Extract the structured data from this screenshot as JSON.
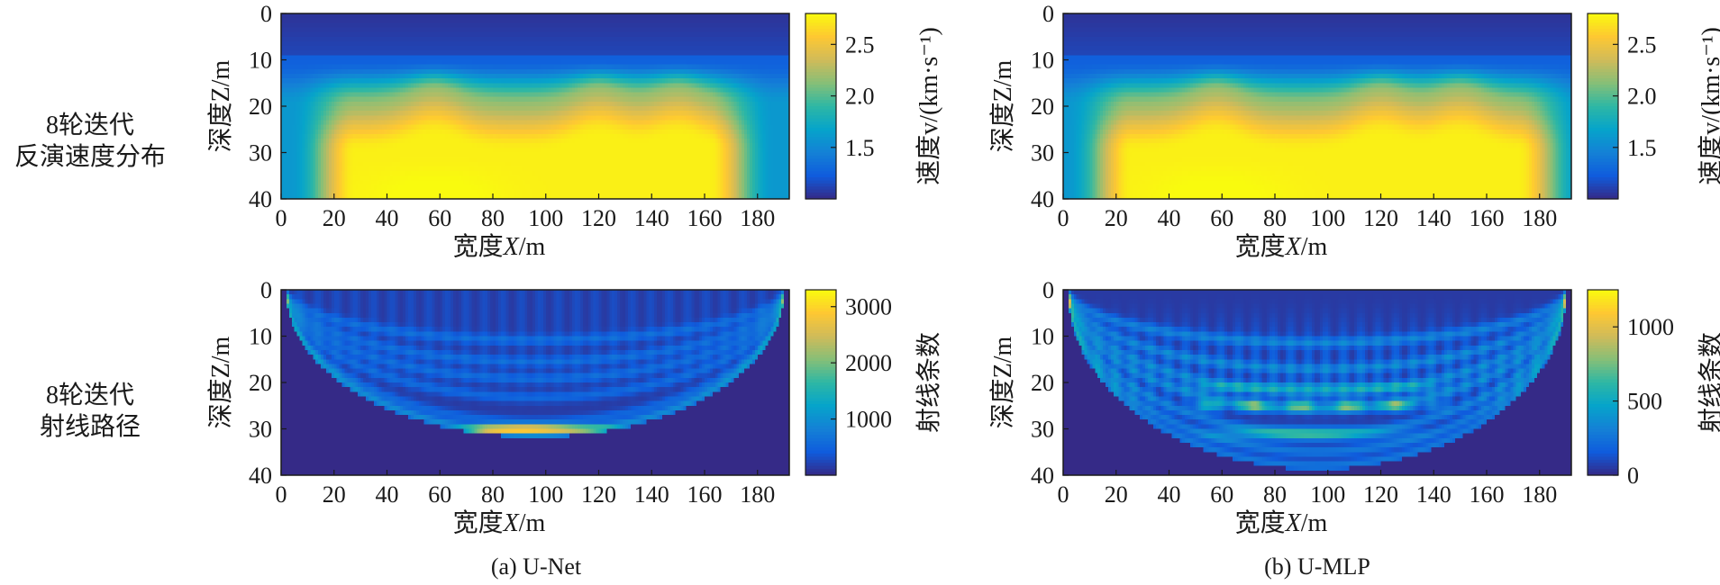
{
  "row_labels": [
    {
      "line1": "8轮迭代",
      "line2": "反演速度分布"
    },
    {
      "line1": "8轮迭代",
      "line2": "射线路径"
    }
  ],
  "captions": {
    "left": "(a) U-Net",
    "right": "(b) U-MLP"
  },
  "axes": {
    "xlabel_prefix": "宽度",
    "xlabel_var": "X",
    "xlabel_unit": "/m",
    "ylabel": "深度Z/m",
    "xticks": [
      "0",
      "20",
      "40",
      "60",
      "80",
      "100",
      "120",
      "140",
      "160",
      "180"
    ],
    "yticks": [
      "0",
      "10",
      "20",
      "30",
      "40"
    ]
  },
  "colorbar_labels": {
    "velocity": "速度v/(km·s⁻¹)",
    "rays": "射线条数"
  },
  "colors": {
    "parula": [
      "#352a87",
      "#0f5cdd",
      "#1481d6",
      "#06a4ca",
      "#2eb7a4",
      "#87bf77",
      "#d1bb59",
      "#fec832",
      "#f9fb0e"
    ]
  },
  "chart_data": [
    {
      "id": "unet-velocity",
      "type": "heatmap",
      "title": "",
      "xlabel": "宽度X/m",
      "ylabel": "深度Z/m",
      "xlim": [
        0,
        192
      ],
      "ylim": [
        40,
        0
      ],
      "colorbar": {
        "label": "速度v/(km·s⁻¹)",
        "range": [
          1.0,
          2.8
        ],
        "ticks": [
          "1.5",
          "2.0",
          "2.5"
        ]
      },
      "field": {
        "kind": "velocity",
        "near_surface": 1.05,
        "layer_top": 1.6,
        "layer_mid": 2.2,
        "layer_core": 2.75,
        "bowl_x": [
          22,
          168
        ],
        "bowl_depth": [
          20,
          28
        ],
        "bumps_x": [
          58,
          120,
          150
        ]
      }
    },
    {
      "id": "umlp-velocity",
      "type": "heatmap",
      "title": "",
      "xlabel": "宽度X/m",
      "ylabel": "深度Z/m",
      "xlim": [
        0,
        192
      ],
      "ylim": [
        40,
        0
      ],
      "colorbar": {
        "label": "速度v/(km·s⁻¹)",
        "range": [
          1.0,
          2.8
        ],
        "ticks": [
          "1.5",
          "2.0",
          "2.5"
        ]
      },
      "field": {
        "kind": "velocity",
        "near_surface": 1.05,
        "layer_top": 1.6,
        "layer_mid": 2.2,
        "layer_core": 2.75,
        "bowl_x": [
          20,
          178
        ],
        "bowl_depth": [
          20,
          30
        ],
        "bumps_x": [
          58,
          120,
          150
        ]
      }
    },
    {
      "id": "unet-rays",
      "type": "heatmap",
      "title": "",
      "xlabel": "宽度X/m",
      "ylabel": "深度Z/m",
      "xlim": [
        0,
        192
      ],
      "ylim": [
        40,
        0
      ],
      "colorbar": {
        "label": "射线条数",
        "range": [
          0,
          3300
        ],
        "ticks": [
          "1000",
          "2000",
          "3000"
        ]
      },
      "field": {
        "kind": "rays",
        "max_depth": 31,
        "hot_x": [
          70,
          130
        ],
        "hot_depth": 30,
        "peak": 3100
      }
    },
    {
      "id": "umlp-rays",
      "type": "heatmap",
      "title": "",
      "xlabel": "宽度X/m",
      "ylabel": "深度Z/m",
      "xlim": [
        0,
        192
      ],
      "ylim": [
        40,
        0
      ],
      "colorbar": {
        "label": "射线条数",
        "range": [
          0,
          1250
        ],
        "ticks": [
          "0",
          "500",
          "1000"
        ]
      },
      "field": {
        "kind": "rays",
        "max_depth": 38,
        "hot_x": [
          50,
          140
        ],
        "hot_depth": 25,
        "peak": 1150
      }
    }
  ]
}
